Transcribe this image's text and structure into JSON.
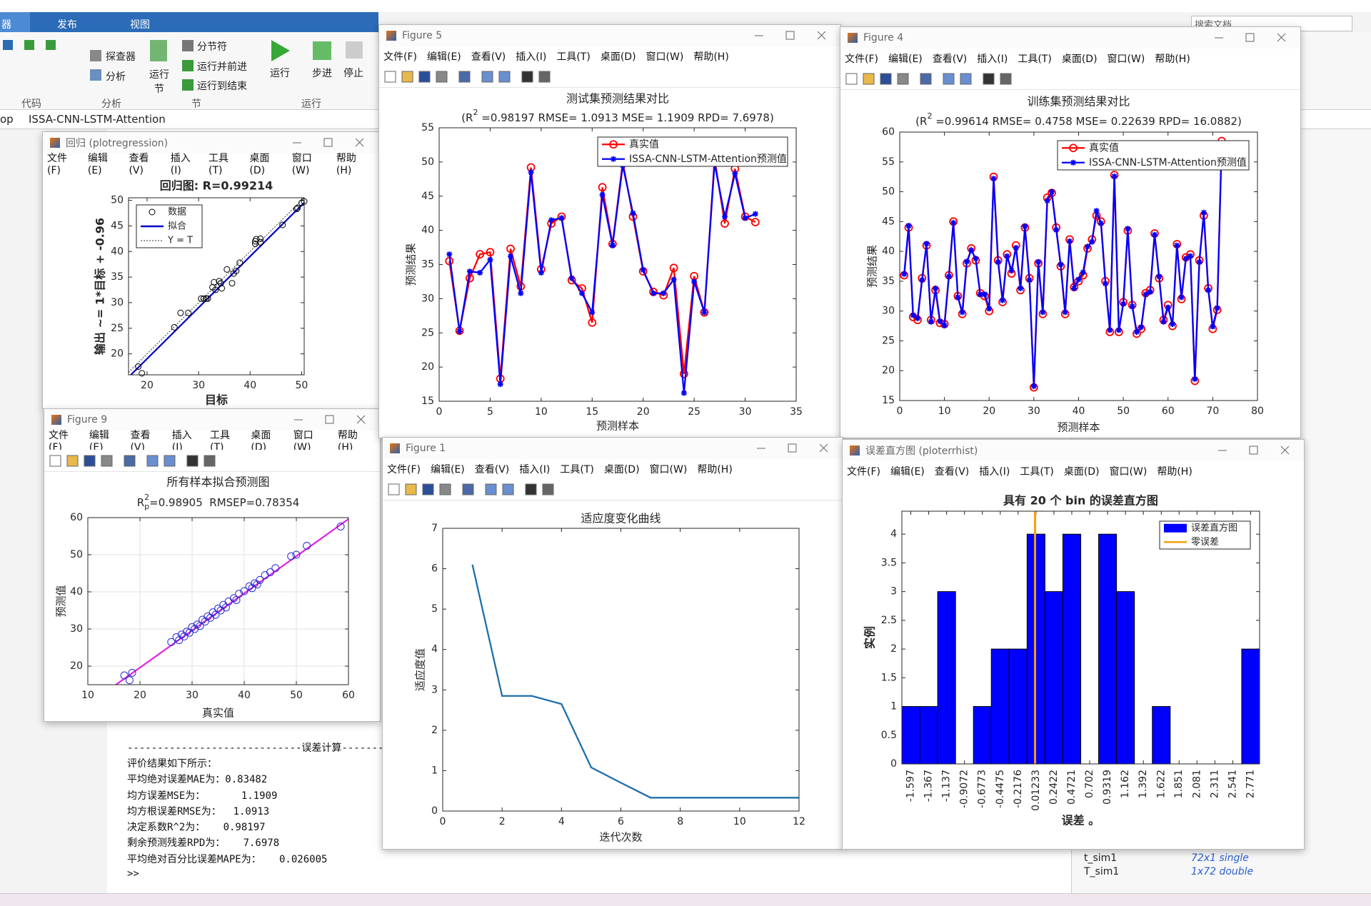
{
  "ribbon": {
    "tabs": [
      "器",
      "发布",
      "视图"
    ],
    "buttons": [
      "探查器",
      "分析",
      "运行节",
      "分节符",
      "运行并前进",
      "运行到结束",
      "运行",
      "步进",
      "停止"
    ],
    "groups": [
      "代码",
      "分析",
      "节",
      "运行"
    ],
    "search": "搜索文档"
  },
  "path": [
    "op",
    "ISSA-CNN-LSTM-Attention"
  ],
  "figure_menu": [
    "文件(F)",
    "编辑(E)",
    "查看(V)",
    "插入(I)",
    "工具(T)",
    "桌面(D)",
    "窗口(W)",
    "帮助(H)"
  ],
  "figures": [
    {
      "window_title": "回归 (plotregression)",
      "chart": {
        "type": "scatter",
        "title": "回归图: R=0.99214",
        "title_bold": true,
        "xlabel": "目标",
        "ylabel": "输出 ~= 1*目标 + -0.96",
        "series": [
          {
            "name": "数据",
            "color": "#000000",
            "x": [
              35.5,
              25.3,
              33,
              36.5,
              36.8,
              18.3,
              37.3,
              31.8,
              49.2,
              34.3,
              41,
              42,
              32.7,
              31.5,
              26.5,
              46.3,
              38,
              50,
              42,
              34,
              31,
              30.5,
              34.5,
              19,
              33.3,
              28,
              50.5,
              41,
              49,
              42,
              41.2
            ],
            "values": [
              36.5,
              25.2,
              34,
              33.8,
              35.7,
              17.5,
              36.2,
              30.8,
              48.5,
              33.8,
              41.5,
              41.8,
              33,
              30.8,
              28,
              45.2,
              37.8,
              49.5,
              42.5,
              34.2,
              30.8,
              30.8,
              32.8,
              16.2,
              32.5,
              28,
              49.8,
              42,
              48.3,
              41.8,
              42.4
            ]
          }
        ],
        "fit": {
          "name": "拟合",
          "slope": 1,
          "intercept": -0.96,
          "color": "#0000c8"
        },
        "identity": {
          "name": "Y = T",
          "color": "#333333"
        },
        "xlim": [
          16.4,
          50.5
        ],
        "ylim": [
          15.9,
          50.5
        ],
        "xticks": [
          20,
          30,
          40,
          50
        ],
        "yticks": [
          20,
          25,
          30,
          35,
          40,
          45,
          50
        ],
        "grid": false
      }
    },
    {
      "window_title": "Figure 9",
      "chart": {
        "type": "scatter",
        "title": "所有样本拟合预测图",
        "subtitle": [
          {
            "text": "R"
          },
          {
            "text": "2",
            "pos": "sup"
          },
          {
            "text": "p",
            "pos": "sub"
          },
          {
            "text": "=0.98905  RMSEP=0.78354"
          }
        ],
        "xlabel": "真实值",
        "ylabel": "预测值",
        "series": [
          {
            "color": "#2b2bd0",
            "x": [
              17,
              18,
              18.5,
              26,
              27,
              27.5,
              28,
              28.5,
              29,
              29.5,
              30,
              30.5,
              31,
              31.5,
              32,
              32.5,
              33,
              33.5,
              34,
              34.5,
              35,
              35.5,
              36,
              36.5,
              37,
              38,
              38.5,
              39,
              40,
              41,
              41.5,
              42,
              42.5,
              43,
              44,
              45,
              46,
              49,
              50,
              52,
              58.5
            ],
            "values": [
              17.5,
              16.2,
              18.2,
              26.5,
              27.8,
              27,
              28.5,
              28,
              29.3,
              29,
              30.5,
              30,
              31.2,
              30.8,
              32.5,
              32,
              33.4,
              33,
              34.5,
              33.8,
              35.5,
              35,
              36.5,
              35.8,
              37.4,
              38.3,
              37.8,
              39.5,
              40.2,
              41.5,
              41,
              42.3,
              42,
              43.2,
              44.5,
              45.3,
              46.4,
              49.6,
              50,
              52.4,
              57.6
            ]
          }
        ],
        "fit": {
          "slope": 1,
          "intercept": -0.4,
          "color": "#e020e0"
        },
        "xlim": [
          10,
          60
        ],
        "ylim": [
          15,
          60
        ],
        "xticks": [
          10,
          20,
          30,
          40,
          50,
          60
        ],
        "yticks": [
          20,
          30,
          40,
          50,
          60
        ],
        "grid": true
      }
    },
    {
      "window_title": "Figure 5",
      "chart": {
        "type": "line",
        "title": "测试集预测结果对比",
        "subtitle": [
          {
            "text": "(R"
          },
          {
            "text": "2",
            "pos": "sup"
          },
          {
            "text": " =0.98197 RMSE= 1.0913 MSE= 1.1909 RPD= 7.6978)"
          }
        ],
        "xlabel": "预测样本",
        "ylabel": "预测结果",
        "x": [
          1,
          2,
          3,
          4,
          5,
          6,
          7,
          8,
          9,
          10,
          11,
          12,
          13,
          14,
          15,
          16,
          17,
          18,
          19,
          20,
          21,
          22,
          23,
          24,
          25,
          26,
          27,
          28,
          29,
          30,
          31
        ],
        "series": [
          {
            "name": "真实值",
            "color": "#ff0000",
            "marker": "o",
            "values": [
              35.5,
              25.3,
              33,
              36.5,
              36.8,
              18.3,
              37.3,
              31.8,
              49.2,
              34.3,
              41,
              42,
              32.7,
              31.5,
              26.5,
              46.3,
              38,
              50,
              42,
              34,
              31,
              30.5,
              34.5,
              19,
              33.3,
              28,
              50.5,
              41,
              49,
              42,
              41.2
            ]
          },
          {
            "name": "ISSA-CNN-LSTM-Attention预测值",
            "color": "#0000ff",
            "marker": "*",
            "values": [
              36.5,
              25.2,
              34,
              33.8,
              35.7,
              17.5,
              36.2,
              30.8,
              48.5,
              33.8,
              41.5,
              41.8,
              33,
              30.8,
              28,
              45.2,
              37.8,
              49.5,
              42.5,
              34.2,
              30.8,
              30.8,
              32.8,
              16.2,
              32.5,
              28,
              49.8,
              42,
              48.3,
              41.8,
              42.4
            ]
          }
        ],
        "xlim": [
          0,
          35
        ],
        "ylim": [
          15,
          55
        ],
        "xticks": [
          0,
          5,
          10,
          15,
          20,
          25,
          30,
          35
        ],
        "yticks": [
          15,
          20,
          25,
          30,
          35,
          40,
          45,
          50,
          55
        ],
        "grid": false
      }
    },
    {
      "window_title": "Figure 4",
      "chart": {
        "type": "line",
        "title": "训练集预测结果对比",
        "subtitle": [
          {
            "text": "(R"
          },
          {
            "text": "2",
            "pos": "sup"
          },
          {
            "text": " =0.99614 RMSE= 0.4758 MSE= 0.22639 RPD= 16.0882)"
          }
        ],
        "xlabel": "预测样本",
        "ylabel": "预测结果",
        "x": [
          1,
          2,
          3,
          4,
          5,
          6,
          7,
          8,
          9,
          10,
          11,
          12,
          13,
          14,
          15,
          16,
          17,
          18,
          19,
          20,
          21,
          22,
          23,
          24,
          25,
          26,
          27,
          28,
          29,
          30,
          31,
          32,
          33,
          34,
          35,
          36,
          37,
          38,
          39,
          40,
          41,
          42,
          43,
          44,
          45,
          46,
          47,
          48,
          49,
          50,
          51,
          52,
          53,
          54,
          55,
          56,
          57,
          58,
          59,
          60,
          61,
          62,
          63,
          64,
          65,
          66,
          67,
          68,
          69,
          70,
          71,
          72
        ],
        "series": [
          {
            "name": "真实值",
            "color": "#ff0000",
            "marker": "o",
            "values": [
              36,
              44,
              29,
              28.5,
              35.5,
              41,
              28.5,
              33.5,
              28,
              27.8,
              36,
              45,
              32.5,
              29.5,
              38,
              40.5,
              38.5,
              33,
              32.5,
              30,
              52.5,
              38.5,
              31.5,
              39.5,
              36.3,
              41,
              33.5,
              44,
              35.5,
              17.2,
              38,
              29.5,
              49,
              49.8,
              44,
              37.5,
              29.5,
              42,
              34,
              35,
              36,
              40.5,
              42,
              46,
              45,
              35,
              26.5,
              52.8,
              26.5,
              31.5,
              43.5,
              31,
              26.2,
              27,
              33,
              33.5,
              43,
              35.5,
              28.5,
              31,
              27.5,
              41.2,
              32,
              39,
              39.5,
              18.3,
              38.5,
              46,
              33.8,
              27,
              30.2,
              58.5
            ]
          },
          {
            "name": "ISSA-CNN-LSTM-Attention预测值",
            "color": "#0000ff",
            "marker": "*",
            "values": [
              36.2,
              44.3,
              29.3,
              28.8,
              35.2,
              41.3,
              28.2,
              33.8,
              28.3,
              27.6,
              35.8,
              44.8,
              32.3,
              29.8,
              38.3,
              40.2,
              38.8,
              32.8,
              32.8,
              30.4,
              52.2,
              38.2,
              31.8,
              39.2,
              36.8,
              40.6,
              33.8,
              44.2,
              35.2,
              17.4,
              38.2,
              29.8,
              48.5,
              50,
              43.6,
              37.8,
              29.8,
              41.7,
              33.8,
              35.3,
              36.5,
              40.8,
              41.6,
              46.8,
              44.7,
              34.6,
              26.8,
              52.6,
              26.8,
              31.2,
              43.8,
              30.8,
              26.5,
              27.3,
              32.8,
              33.2,
              42.8,
              35.8,
              28.2,
              30.6,
              27.8,
              41,
              32.3,
              38.8,
              39.2,
              18.6,
              38.2,
              46.5,
              33.5,
              27.4,
              30.5,
              58
            ]
          }
        ],
        "xlim": [
          0,
          80
        ],
        "ylim": [
          15,
          60
        ],
        "xticks": [
          0,
          10,
          20,
          30,
          40,
          50,
          60,
          70,
          80
        ],
        "yticks": [
          15,
          20,
          25,
          30,
          35,
          40,
          45,
          50,
          55,
          60
        ],
        "grid": false
      }
    },
    {
      "window_title": "Figure 1",
      "chart": {
        "type": "line",
        "title": "适应度变化曲线",
        "xlabel": "迭代次数",
        "ylabel": "适应度值",
        "x": [
          1,
          2,
          3,
          4,
          5,
          6,
          7,
          8,
          9,
          10,
          11,
          12
        ],
        "series": [
          {
            "color": "#1f6fa8",
            "values": [
              6.1,
              2.85,
              2.85,
              2.65,
              1.08,
              0.7,
              0.33,
              0.33,
              0.33,
              0.33,
              0.33,
              0.33
            ]
          }
        ],
        "xlim": [
          0,
          12
        ],
        "ylim": [
          0,
          7
        ],
        "xticks": [
          0,
          2,
          4,
          6,
          8,
          10,
          12
        ],
        "yticks": [
          0,
          1,
          2,
          3,
          4,
          5,
          6,
          7
        ],
        "grid": false
      }
    },
    {
      "window_title": "误差直方图 (ploterrhist)",
      "chart": {
        "type": "bar",
        "title": "具有 20 个 bin 的误差直方图",
        "title_bold": true,
        "xlabel": "误差 。",
        "ylabel": "实例",
        "x": [
          -1.597,
          -1.367,
          -1.137,
          -0.9072,
          -0.6773,
          -0.4475,
          -0.2176,
          0.01233,
          0.2422,
          0.4721,
          0.702,
          0.9319,
          1.162,
          1.392,
          1.622,
          1.851,
          2.081,
          2.311,
          2.541,
          2.771
        ],
        "series": [
          {
            "name": "误差直方图",
            "color": "#0000ff",
            "values": [
              1,
              1,
              3,
              0,
              1,
              2,
              2,
              4,
              3,
              4,
              0,
              4,
              3,
              0,
              1,
              0,
              0,
              0,
              0,
              2
            ]
          }
        ],
        "zero_line": {
          "name": "零误差",
          "value": 0,
          "color": "#f5a00a"
        },
        "xlim": [
          -1.712,
          2.886
        ],
        "ylim": [
          0,
          4.4
        ],
        "xticks": [
          -1.597,
          -1.367,
          -1.137,
          -0.9072,
          -0.6773,
          -0.4475,
          -0.2176,
          0.01233,
          0.2422,
          0.4721,
          0.702,
          0.9319,
          1.162,
          1.392,
          1.622,
          1.851,
          2.081,
          2.311,
          2.541,
          2.771
        ],
        "yticks": [
          0,
          0.5,
          1,
          1.5,
          2,
          2.5,
          3,
          3.5,
          4
        ],
        "rotate_xticks": true,
        "grid": false
      }
    }
  ],
  "command_window": {
    "header": "-----------------------------误差计算-----------------------------",
    "lines": [
      "评价结果如下所示：",
      "平均绝对误差MAE为：0.83482",
      "均方误差MSE为：      1.1909",
      "均方根误差RMSE为：  1.0913",
      "决定系数R^2为：   0.98197",
      "剩余预测残差RPD为：   7.6978",
      "平均绝对百分比误差MAPE为：   0.026005"
    ],
    "prompt": ">>"
  },
  "workspace": [
    {
      "name": "t_sim1",
      "value": "72x1 single"
    },
    {
      "name": "T_sim1",
      "value": "1x72 double"
    }
  ]
}
